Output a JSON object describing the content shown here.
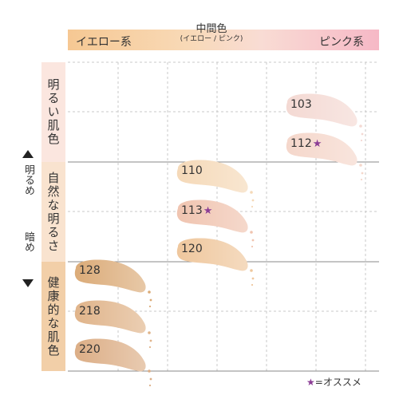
{
  "header": {
    "left_label": "イエロー系",
    "mid_label": "中間色",
    "mid_sub": "(イエロー / ピンク)",
    "right_label": "ピンク系"
  },
  "rows": [
    {
      "label": "明るい肌色"
    },
    {
      "label": "自然な明るさ"
    },
    {
      "label": "健康的な肌色"
    }
  ],
  "axis": {
    "up_label": "明るめ",
    "down_label": "暗め"
  },
  "swatches": [
    {
      "code": "103",
      "star": "",
      "color": "#f4d9d3"
    },
    {
      "code": "112",
      "star": "★",
      "color": "#f5d7cb"
    },
    {
      "code": "110",
      "star": "",
      "color": "#f5d9b8"
    },
    {
      "code": "113",
      "star": "★",
      "color": "#f0c4b0"
    },
    {
      "code": "120",
      "star": "",
      "color": "#efc79d"
    },
    {
      "code": "128",
      "star": "",
      "color": "#dbab78"
    },
    {
      "code": "218",
      "star": "",
      "color": "#e0b48a"
    },
    {
      "code": "220",
      "star": "",
      "color": "#dcae86"
    }
  ],
  "legend": {
    "star": "★",
    "text": "=オススメ",
    "star_color": "#8b3d95"
  }
}
